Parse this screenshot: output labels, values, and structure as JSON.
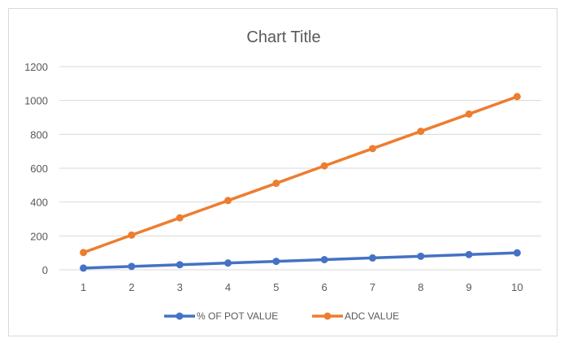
{
  "chart_data": {
    "type": "line",
    "title": "Chart Title",
    "xlabel": "",
    "ylabel": "",
    "categories": [
      "1",
      "2",
      "3",
      "4",
      "5",
      "6",
      "7",
      "8",
      "9",
      "10"
    ],
    "y_ticks": [
      "0",
      "200",
      "400",
      "600",
      "800",
      "1000",
      "1200"
    ],
    "ylim": [
      0,
      1200
    ],
    "grid": true,
    "legend_position": "bottom",
    "series": [
      {
        "name": "% OF POT VALUE",
        "color": "#4472c4",
        "values": [
          10,
          20,
          30,
          40,
          50,
          60,
          70,
          80,
          90,
          100
        ]
      },
      {
        "name": "ADC VALUE",
        "color": "#ed7d31",
        "values": [
          102,
          205,
          307,
          409,
          511,
          614,
          716,
          818,
          920,
          1023
        ]
      }
    ]
  }
}
